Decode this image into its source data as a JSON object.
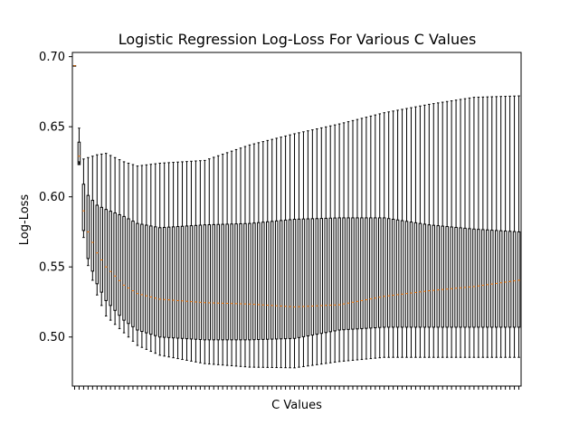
{
  "chart_data": {
    "type": "boxplot",
    "title": "Logistic Regression Log-Loss For Various C Values",
    "xlabel": "C Values",
    "ylabel": "Log-Loss",
    "ylim": [
      0.465,
      0.703
    ],
    "yticks": [
      "0.50",
      "0.55",
      "0.60",
      "0.65",
      "0.70"
    ],
    "ytick_values": [
      0.5,
      0.55,
      0.6,
      0.65,
      0.7
    ],
    "x_tick_labels_visible": false,
    "box_count": 100,
    "median_color": "#ff7f0e",
    "box_color": "#000000",
    "anchors": {
      "positions": [
        1,
        2,
        3,
        4,
        6,
        8,
        12,
        15,
        20,
        30,
        40,
        50,
        60,
        70,
        80,
        90,
        100
      ],
      "q1": [
        0.6935,
        0.623,
        0.576,
        0.556,
        0.538,
        0.526,
        0.512,
        0.505,
        0.5,
        0.498,
        0.498,
        0.499,
        0.505,
        0.507,
        0.507,
        0.507,
        0.507
      ],
      "median": [
        0.6935,
        0.629,
        0.59,
        0.575,
        0.56,
        0.55,
        0.537,
        0.531,
        0.527,
        0.5245,
        0.5235,
        0.5215,
        0.523,
        0.529,
        0.533,
        0.536,
        0.5405
      ],
      "q3": [
        0.6935,
        0.639,
        0.609,
        0.601,
        0.594,
        0.591,
        0.586,
        0.581,
        0.578,
        0.58,
        0.581,
        0.584,
        0.585,
        0.585,
        0.58,
        0.577,
        0.575
      ],
      "whisker_low": [
        0.6935,
        0.625,
        0.571,
        0.551,
        0.53,
        0.515,
        0.503,
        0.494,
        0.487,
        0.481,
        0.4785,
        0.478,
        0.4825,
        0.4855,
        0.4855,
        0.4855,
        0.4855
      ],
      "whisker_high": [
        0.6935,
        0.649,
        0.627,
        0.628,
        0.63,
        0.631,
        0.625,
        0.622,
        0.624,
        0.626,
        0.637,
        0.645,
        0.652,
        0.66,
        0.666,
        0.671,
        0.672
      ]
    }
  }
}
